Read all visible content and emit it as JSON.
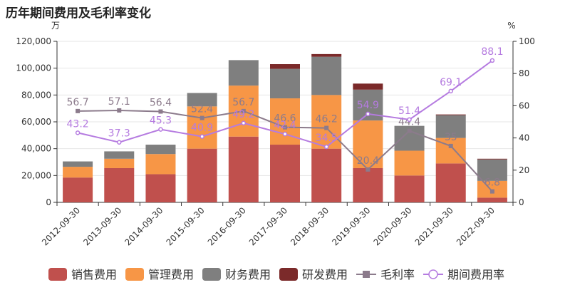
{
  "title": "历年期间费用及毛利率变化",
  "chart_data": {
    "type": "bar",
    "categories": [
      "2012-09-30",
      "2013-09-30",
      "2014-09-30",
      "2015-09-30",
      "2016-09-30",
      "2017-09-30",
      "2018-09-30",
      "2019-09-30",
      "2020-09-30",
      "2021-09-30",
      "2022-09-30"
    ],
    "left_axis": {
      "unit": "万",
      "min": 0,
      "max": 120000,
      "ticks": [
        0,
        20000,
        40000,
        60000,
        80000,
        100000,
        120000
      ],
      "tick_labels": [
        "0",
        "20,000",
        "40,000",
        "60,000",
        "80,000",
        "100,000",
        "120,000"
      ]
    },
    "right_axis": {
      "unit": "%",
      "min": 0,
      "max": 100,
      "ticks": [
        0,
        20,
        40,
        60,
        80,
        100
      ],
      "tick_labels": [
        "0",
        "20",
        "40",
        "60",
        "80",
        "100"
      ]
    },
    "bar_series": [
      {
        "name": "销售费用",
        "color": "#c0504d",
        "values": [
          18500,
          25500,
          21000,
          40000,
          49000,
          43000,
          40000,
          25500,
          20000,
          29000,
          3500
        ]
      },
      {
        "name": "管理费用",
        "color": "#f79646",
        "values": [
          8000,
          7000,
          15000,
          31500,
          38000,
          34500,
          40000,
          35500,
          18500,
          19000,
          12500
        ]
      },
      {
        "name": "财务费用",
        "color": "#7f7f7f",
        "values": [
          4000,
          5500,
          7000,
          10000,
          19000,
          22000,
          28500,
          23000,
          18500,
          17000,
          16000
        ]
      },
      {
        "name": "研发费用",
        "color": "#7b2a2a",
        "values": [
          0,
          0,
          0,
          0,
          0,
          3500,
          2000,
          4500,
          0,
          500,
          500
        ]
      }
    ],
    "line_series": [
      {
        "name": "毛利率",
        "color": "#8c7b8c",
        "marker": "square",
        "values": [
          56.7,
          57.1,
          56.4,
          52.4,
          56.7,
          46.6,
          46.2,
          20.4,
          44.4,
          35.0,
          6.8
        ],
        "labels": [
          "56.7",
          "57.1",
          "56.4",
          "52.4",
          "56.7",
          "46.6",
          "46.2",
          "20.4",
          "44.4",
          "35",
          "6.8"
        ]
      },
      {
        "name": "期间费用率",
        "color": "#b57be0",
        "marker": "circle",
        "values": [
          43.2,
          37.3,
          45.3,
          40.9,
          49.2,
          42.4,
          34.5,
          54.9,
          51.4,
          69.1,
          88.1
        ],
        "labels": [
          "43.2",
          "37.3",
          "45.3",
          "40.9",
          "49.2",
          "42.4",
          "34.5",
          "54.9",
          "51.4",
          "69.1",
          "88.1"
        ]
      }
    ],
    "legend": {
      "position": "bottom",
      "items": [
        "销售费用",
        "管理费用",
        "财务费用",
        "研发费用",
        "毛利率",
        "期间费用率"
      ]
    }
  }
}
